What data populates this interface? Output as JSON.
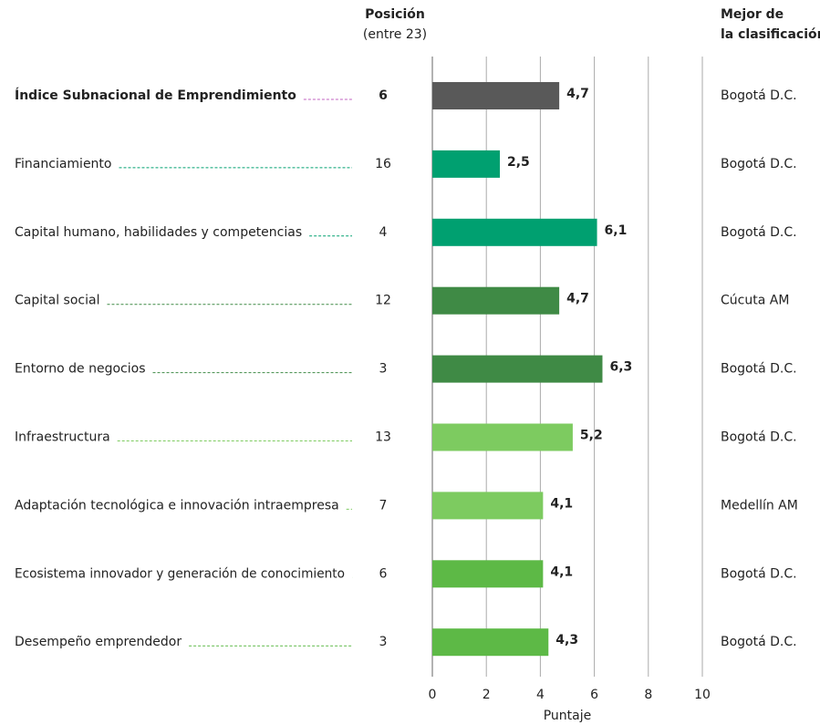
{
  "chart_data": {
    "type": "bar",
    "orientation": "horizontal",
    "position_header": "Posición",
    "position_subheader": "(entre 23)",
    "best_header": [
      "Mejor de",
      "la clasificación"
    ],
    "xlabel": "Puntaje",
    "categories": [
      "Índice Subnacional de Emprendimiento",
      "Financiamiento",
      "Capital humano, habilidades y competencias",
      "Capital social",
      "Entorno de negocios",
      "Infraestructura",
      "Adaptación tecnológica e innovación intraempresa",
      "Ecosistema innovador y generación de conocimiento",
      "Desempeño emprendedor"
    ],
    "values": [
      4.7,
      2.5,
      6.1,
      4.7,
      6.3,
      5.2,
      4.1,
      4.1,
      4.3
    ],
    "value_labels": [
      "4,7",
      "2,5",
      "6,1",
      "4,7",
      "6,3",
      "5,2",
      "4,1",
      "4,1",
      "4,3"
    ],
    "positions": [
      6,
      16,
      4,
      12,
      3,
      13,
      7,
      6,
      3
    ],
    "best": [
      "Bogotá D.C.",
      "Bogotá D.C.",
      "Bogotá D.C.",
      "Cúcuta AM",
      "Bogotá D.C.",
      "Bogotá D.C.",
      "Medellín AM",
      "Bogotá D.C.",
      "Bogotá D.C."
    ],
    "colors": [
      "#595959",
      "#00a070",
      "#00a070",
      "#3f8a45",
      "#3f8a45",
      "#7dcb60",
      "#7dcb60",
      "#5db946",
      "#5db946"
    ],
    "label_colors": [
      "#111111",
      "#00a070",
      "#00a070",
      "#3f8a45",
      "#3f8a45",
      "#7dcb60",
      "#7dcb60",
      "#5db946",
      "#5db946"
    ],
    "xlim": [
      0,
      10
    ],
    "xticks": [
      0,
      2,
      4,
      6,
      8,
      10
    ],
    "grid": true
  }
}
